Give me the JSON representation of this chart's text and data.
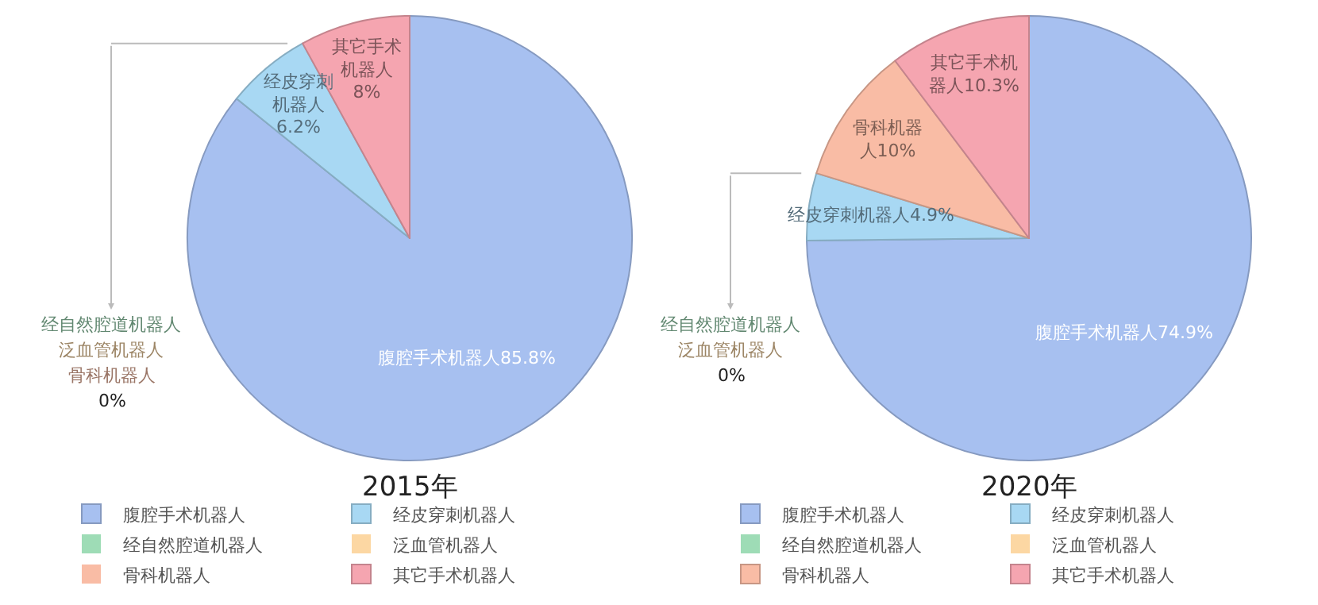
{
  "chart_data": [
    {
      "type": "pie",
      "title": "2015年",
      "categories": [
        "腹腔手术机器人",
        "经皮穿刺机器人",
        "经自然腔道机器人",
        "泛血管机器人",
        "骨科机器人",
        "其它手术机器人"
      ],
      "values": [
        85.8,
        6.2,
        0,
        0,
        0,
        8
      ],
      "value_labels": [
        "腹腔手术机器人85.8%",
        "经皮穿刺机器人6.2%",
        "经自然腔道机器人",
        "泛血管机器人",
        "骨科机器人\n0%",
        "其它手术机器人8%"
      ],
      "colors": [
        "#a7c0f0",
        "#a8d8f3",
        "#9edcb6",
        "#fcd7a3",
        "#f9bca5",
        "#f5a5b0"
      ],
      "legend": "bottom"
    },
    {
      "type": "pie",
      "title": "2020年",
      "categories": [
        "腹腔手术机器人",
        "经皮穿刺机器人",
        "经自然腔道机器人",
        "泛血管机器人",
        "骨科机器人",
        "其它手术机器人"
      ],
      "values": [
        74.9,
        4.9,
        0,
        0,
        10,
        10.3
      ],
      "value_labels": [
        "腹腔手术机器人74.9%",
        "经皮穿刺机器人4.9%",
        "经自然腔道机器人",
        "泛血管机器人\n0%",
        "骨科机器人10%",
        "其它手术机器人10.3%"
      ],
      "colors": [
        "#a7c0f0",
        "#a8d8f3",
        "#9edcb6",
        "#fcd7a3",
        "#f9bca5",
        "#f5a5b0"
      ],
      "legend": "bottom"
    }
  ]
}
